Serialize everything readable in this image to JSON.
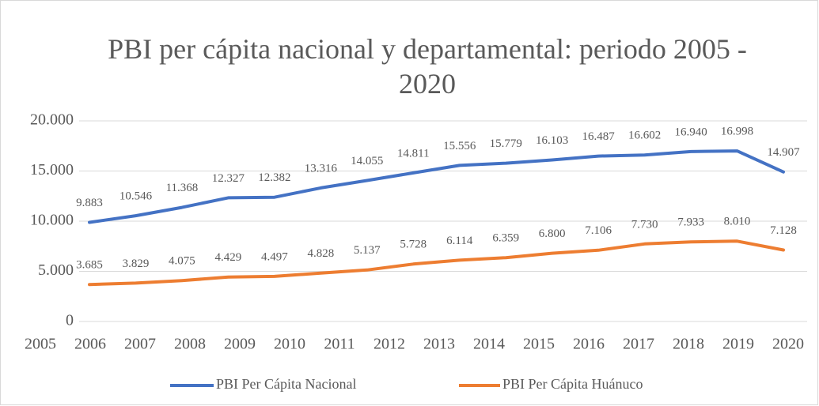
{
  "chart_data": {
    "type": "line",
    "title": "PBI per cápita nacional y departamental: periodo 2005 - 2020",
    "categories": [
      "2005",
      "2006",
      "2007",
      "2008",
      "2009",
      "2010",
      "2011",
      "2012",
      "2013",
      "2014",
      "2015",
      "2016",
      "2017",
      "2018",
      "2019",
      "2020"
    ],
    "series": [
      {
        "name": "PBI Per Cápita Nacional",
        "color": "#4472c4",
        "values": [
          9883,
          10546,
          11368,
          12327,
          12382,
          13316,
          14055,
          14811,
          15556,
          15779,
          16103,
          16487,
          16602,
          16940,
          16998,
          14907
        ],
        "value_labels": [
          "9.883",
          "10.546",
          "11.368",
          "12.327",
          "12.382",
          "13.316",
          "14.055",
          "14.811",
          "15.556",
          "15.779",
          "16.103",
          "16.487",
          "16.602",
          "16.940",
          "16.998",
          "14.907"
        ]
      },
      {
        "name": "PBI Per Cápita Huánuco",
        "color": "#ed7d31",
        "values": [
          3685,
          3829,
          4075,
          4429,
          4497,
          4828,
          5137,
          5728,
          6114,
          6359,
          6800,
          7106,
          7730,
          7933,
          8010,
          7128
        ],
        "value_labels": [
          "3.685",
          "3.829",
          "4.075",
          "4.429",
          "4.497",
          "4.828",
          "5.137",
          "5.728",
          "6.114",
          "6.359",
          "6.800",
          "7.106",
          "7.730",
          "7.933",
          "8.010",
          "7.128"
        ]
      }
    ],
    "ylim": [
      0,
      20000
    ],
    "yticks": [
      0,
      {
        "value": 5000,
        "label": "5.000"
      },
      {
        "value": 10000,
        "label": "10.000"
      },
      {
        "value": 15000,
        "label": "15.000"
      },
      {
        "value": 20000,
        "label": "20.000"
      }
    ],
    "grid": true,
    "legend": "bottom"
  }
}
